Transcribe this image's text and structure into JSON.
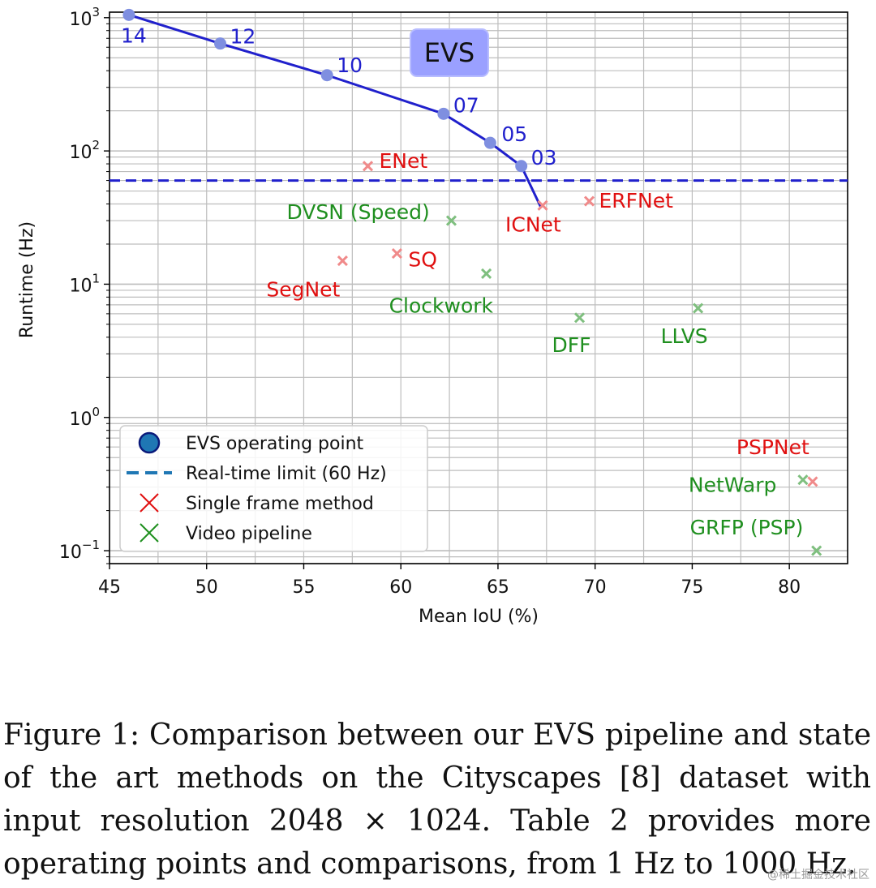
{
  "chart_data": {
    "type": "scatter",
    "xlabel": "Mean IoU (%)",
    "ylabel": "Runtime (Hz)",
    "xlim": [
      45,
      83
    ],
    "ylim": [
      0.08,
      1100
    ],
    "yscale": "log",
    "grid": true,
    "legend_position": "lower-left",
    "x_ticks": [
      45,
      50,
      55,
      60,
      65,
      70,
      75,
      80
    ],
    "y_ticks": [
      {
        "value": 0.1,
        "base": "10",
        "exp": "−1"
      },
      {
        "value": 1,
        "base": "10",
        "exp": "0"
      },
      {
        "value": 10,
        "base": "10",
        "exp": "1"
      },
      {
        "value": 100,
        "base": "10",
        "exp": "2"
      },
      {
        "value": 1000,
        "base": "10",
        "exp": "3"
      }
    ],
    "badge": "EVS",
    "evs_points": [
      {
        "label": "14",
        "x": 46.0,
        "y": 1050
      },
      {
        "label": "12",
        "x": 50.7,
        "y": 640
      },
      {
        "label": "10",
        "x": 56.2,
        "y": 370
      },
      {
        "label": "07",
        "x": 62.2,
        "y": 190
      },
      {
        "label": "05",
        "x": 64.6,
        "y": 115
      },
      {
        "label": "03",
        "x": 66.2,
        "y": 77
      }
    ],
    "evs_curve_end": {
      "x": 67.2,
      "y": 38
    },
    "realtime_limit": 60,
    "single_frame_methods": [
      {
        "name": "ENet",
        "x": 58.3,
        "y": 77
      },
      {
        "name": "ICNet",
        "x": 67.3,
        "y": 39
      },
      {
        "name": "ERFNet",
        "x": 69.7,
        "y": 42
      },
      {
        "name": "SegNet",
        "x": 57.0,
        "y": 15
      },
      {
        "name": "SQ",
        "x": 59.8,
        "y": 17
      },
      {
        "name": "PSPNet",
        "x": 81.2,
        "y": 0.33
      }
    ],
    "video_pipelines": [
      {
        "name": "DVSN (Speed)",
        "x": 62.6,
        "y": 30
      },
      {
        "name": "Clockwork",
        "x": 64.4,
        "y": 12
      },
      {
        "name": "DFF",
        "x": 69.2,
        "y": 5.6
      },
      {
        "name": "LLVS",
        "x": 75.3,
        "y": 6.6
      },
      {
        "name": "NetWarp",
        "x": 80.7,
        "y": 0.34
      },
      {
        "name": "GRFP (PSP)",
        "x": 81.4,
        "y": 0.1
      }
    ],
    "legend": [
      {
        "key": "evs",
        "label": "EVS operating point"
      },
      {
        "key": "limit",
        "label": "Real-time limit (60 Hz)"
      },
      {
        "key": "single",
        "label": "Single frame method"
      },
      {
        "key": "video",
        "label": "Video pipeline"
      }
    ],
    "colors": {
      "evs": "#2020cc",
      "evs_marker": "#7f8fe0",
      "single": "#e01010",
      "single_marker": "#f08a8a",
      "video": "#1f8f1f",
      "video_marker": "#7fbf7f",
      "badge_bg": "#9aa0ff",
      "grid": "#bdbdbd"
    }
  },
  "caption": "Figure 1: Comparison between our EVS pipeline and state of the art methods on the Cityscapes [8] dataset with input resolution 2048 × 1024. Table 2 provides more operating points and comparisons, from 1 Hz to 1000 Hz.",
  "watermark": "@稀土掘金技术社区"
}
